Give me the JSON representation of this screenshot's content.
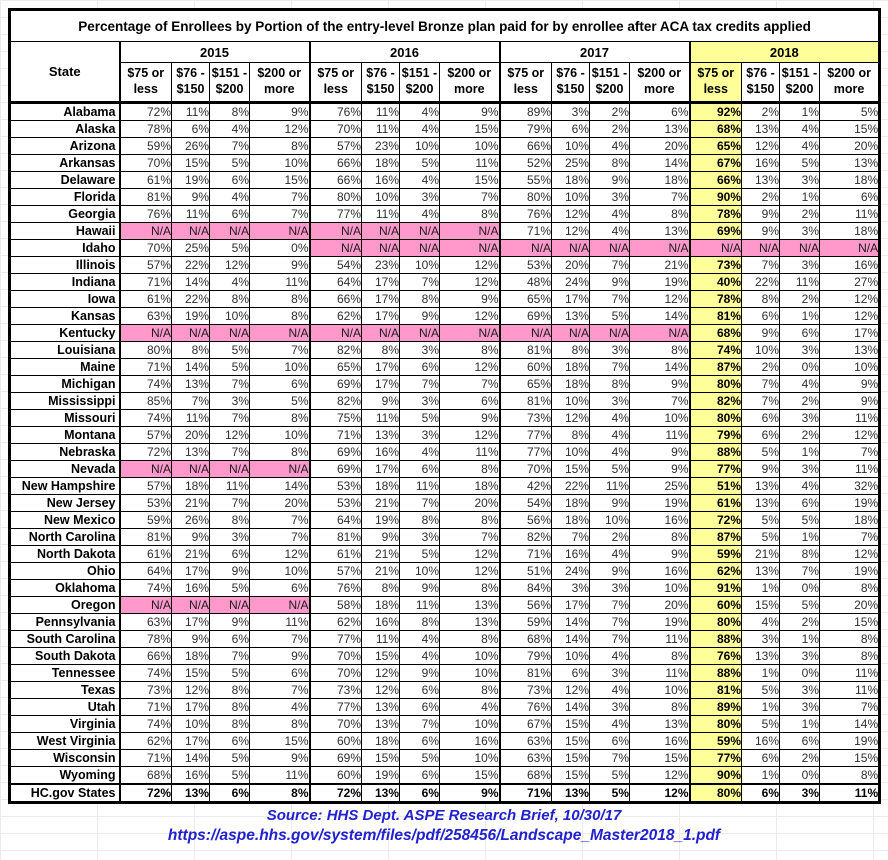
{
  "chart_data": {
    "type": "table",
    "title": "Percentage of Enrollees by Portion of the entry-level Bronze plan paid for by enrollee after ACA tax credits applied",
    "state_header": "State",
    "years": [
      "2015",
      "2016",
      "2017",
      "2018"
    ],
    "highlight_year": "2018",
    "sub_columns": [
      [
        "$75 or",
        "less"
      ],
      [
        "$76 -",
        "$150"
      ],
      [
        "$151 -",
        "$200"
      ],
      [
        "$200 or",
        "more"
      ]
    ],
    "rows": [
      {
        "state": "Alabama",
        "v": [
          "72%",
          "11%",
          "8%",
          "9%",
          "76%",
          "11%",
          "4%",
          "9%",
          "89%",
          "3%",
          "2%",
          "6%",
          "92%",
          "2%",
          "1%",
          "5%"
        ]
      },
      {
        "state": "Alaska",
        "v": [
          "78%",
          "6%",
          "4%",
          "12%",
          "70%",
          "11%",
          "4%",
          "15%",
          "79%",
          "6%",
          "2%",
          "13%",
          "68%",
          "13%",
          "4%",
          "15%"
        ]
      },
      {
        "state": "Arizona",
        "v": [
          "59%",
          "26%",
          "7%",
          "8%",
          "57%",
          "23%",
          "10%",
          "10%",
          "66%",
          "10%",
          "4%",
          "20%",
          "65%",
          "12%",
          "4%",
          "20%"
        ]
      },
      {
        "state": "Arkansas",
        "v": [
          "70%",
          "15%",
          "5%",
          "10%",
          "66%",
          "18%",
          "5%",
          "11%",
          "52%",
          "25%",
          "8%",
          "14%",
          "67%",
          "16%",
          "5%",
          "13%"
        ]
      },
      {
        "state": "Delaware",
        "v": [
          "61%",
          "19%",
          "6%",
          "15%",
          "66%",
          "16%",
          "4%",
          "15%",
          "55%",
          "18%",
          "9%",
          "18%",
          "66%",
          "13%",
          "3%",
          "18%"
        ]
      },
      {
        "state": "Florida",
        "v": [
          "81%",
          "9%",
          "4%",
          "7%",
          "80%",
          "10%",
          "3%",
          "7%",
          "80%",
          "10%",
          "3%",
          "7%",
          "90%",
          "2%",
          "1%",
          "6%"
        ]
      },
      {
        "state": "Georgia",
        "v": [
          "76%",
          "11%",
          "6%",
          "7%",
          "77%",
          "11%",
          "4%",
          "8%",
          "76%",
          "12%",
          "4%",
          "8%",
          "78%",
          "9%",
          "2%",
          "11%"
        ]
      },
      {
        "state": "Hawaii",
        "v": [
          "N/A",
          "N/A",
          "N/A",
          "N/A",
          "N/A",
          "N/A",
          "N/A",
          "N/A",
          "71%",
          "12%",
          "4%",
          "13%",
          "69%",
          "9%",
          "3%",
          "18%"
        ]
      },
      {
        "state": "Idaho",
        "v": [
          "70%",
          "25%",
          "5%",
          "0%",
          "N/A",
          "N/A",
          "N/A",
          "N/A",
          "N/A",
          "N/A",
          "N/A",
          "N/A",
          "N/A",
          "N/A",
          "N/A",
          "N/A"
        ]
      },
      {
        "state": "Illinois",
        "v": [
          "57%",
          "22%",
          "12%",
          "9%",
          "54%",
          "23%",
          "10%",
          "12%",
          "53%",
          "20%",
          "7%",
          "21%",
          "73%",
          "7%",
          "3%",
          "16%"
        ]
      },
      {
        "state": "Indiana",
        "v": [
          "71%",
          "14%",
          "4%",
          "11%",
          "64%",
          "17%",
          "7%",
          "12%",
          "48%",
          "24%",
          "9%",
          "19%",
          "40%",
          "22%",
          "11%",
          "27%"
        ]
      },
      {
        "state": "Iowa",
        "v": [
          "61%",
          "22%",
          "8%",
          "8%",
          "66%",
          "17%",
          "8%",
          "9%",
          "65%",
          "17%",
          "7%",
          "12%",
          "78%",
          "8%",
          "2%",
          "12%"
        ]
      },
      {
        "state": "Kansas",
        "v": [
          "63%",
          "19%",
          "10%",
          "8%",
          "62%",
          "17%",
          "9%",
          "12%",
          "69%",
          "13%",
          "5%",
          "14%",
          "81%",
          "6%",
          "1%",
          "12%"
        ]
      },
      {
        "state": "Kentucky",
        "v": [
          "N/A",
          "N/A",
          "N/A",
          "N/A",
          "N/A",
          "N/A",
          "N/A",
          "N/A",
          "N/A",
          "N/A",
          "N/A",
          "N/A",
          "68%",
          "9%",
          "6%",
          "17%"
        ]
      },
      {
        "state": "Louisiana",
        "v": [
          "80%",
          "8%",
          "5%",
          "7%",
          "82%",
          "8%",
          "3%",
          "8%",
          "81%",
          "8%",
          "3%",
          "8%",
          "74%",
          "10%",
          "3%",
          "13%"
        ]
      },
      {
        "state": "Maine",
        "v": [
          "71%",
          "14%",
          "5%",
          "10%",
          "65%",
          "17%",
          "6%",
          "12%",
          "60%",
          "18%",
          "7%",
          "14%",
          "87%",
          "2%",
          "0%",
          "10%"
        ]
      },
      {
        "state": "Michigan",
        "v": [
          "74%",
          "13%",
          "7%",
          "6%",
          "69%",
          "17%",
          "7%",
          "7%",
          "65%",
          "18%",
          "8%",
          "9%",
          "80%",
          "7%",
          "4%",
          "9%"
        ]
      },
      {
        "state": "Mississippi",
        "v": [
          "85%",
          "7%",
          "3%",
          "5%",
          "82%",
          "9%",
          "3%",
          "6%",
          "81%",
          "10%",
          "3%",
          "7%",
          "82%",
          "7%",
          "2%",
          "9%"
        ]
      },
      {
        "state": "Missouri",
        "v": [
          "74%",
          "11%",
          "7%",
          "8%",
          "75%",
          "11%",
          "5%",
          "9%",
          "73%",
          "12%",
          "4%",
          "10%",
          "80%",
          "6%",
          "3%",
          "11%"
        ]
      },
      {
        "state": "Montana",
        "v": [
          "57%",
          "20%",
          "12%",
          "10%",
          "71%",
          "13%",
          "3%",
          "12%",
          "77%",
          "8%",
          "4%",
          "11%",
          "79%",
          "6%",
          "2%",
          "12%"
        ]
      },
      {
        "state": "Nebraska",
        "v": [
          "72%",
          "13%",
          "7%",
          "8%",
          "69%",
          "16%",
          "4%",
          "11%",
          "77%",
          "10%",
          "4%",
          "9%",
          "88%",
          "5%",
          "1%",
          "7%"
        ]
      },
      {
        "state": "Nevada",
        "v": [
          "N/A",
          "N/A",
          "N/A",
          "N/A",
          "69%",
          "17%",
          "6%",
          "8%",
          "70%",
          "15%",
          "5%",
          "9%",
          "77%",
          "9%",
          "3%",
          "11%"
        ]
      },
      {
        "state": "New Hampshire",
        "v": [
          "57%",
          "18%",
          "11%",
          "14%",
          "53%",
          "18%",
          "11%",
          "18%",
          "42%",
          "22%",
          "11%",
          "25%",
          "51%",
          "13%",
          "4%",
          "32%"
        ]
      },
      {
        "state": "New Jersey",
        "v": [
          "53%",
          "21%",
          "7%",
          "20%",
          "53%",
          "21%",
          "7%",
          "20%",
          "54%",
          "18%",
          "9%",
          "19%",
          "61%",
          "13%",
          "6%",
          "19%"
        ]
      },
      {
        "state": "New Mexico",
        "v": [
          "59%",
          "26%",
          "8%",
          "7%",
          "64%",
          "19%",
          "8%",
          "8%",
          "56%",
          "18%",
          "10%",
          "16%",
          "72%",
          "5%",
          "5%",
          "18%"
        ]
      },
      {
        "state": "North Carolina",
        "v": [
          "81%",
          "9%",
          "3%",
          "7%",
          "81%",
          "9%",
          "3%",
          "7%",
          "82%",
          "7%",
          "2%",
          "8%",
          "87%",
          "5%",
          "1%",
          "7%"
        ]
      },
      {
        "state": "North Dakota",
        "v": [
          "61%",
          "21%",
          "6%",
          "12%",
          "61%",
          "21%",
          "5%",
          "12%",
          "71%",
          "16%",
          "4%",
          "9%",
          "59%",
          "21%",
          "8%",
          "12%"
        ]
      },
      {
        "state": "Ohio",
        "v": [
          "64%",
          "17%",
          "9%",
          "10%",
          "57%",
          "21%",
          "10%",
          "12%",
          "51%",
          "24%",
          "9%",
          "16%",
          "62%",
          "13%",
          "7%",
          "19%"
        ]
      },
      {
        "state": "Oklahoma",
        "v": [
          "74%",
          "16%",
          "5%",
          "6%",
          "76%",
          "8%",
          "9%",
          "8%",
          "84%",
          "3%",
          "3%",
          "10%",
          "91%",
          "1%",
          "0%",
          "8%"
        ]
      },
      {
        "state": "Oregon",
        "v": [
          "N/A",
          "N/A",
          "N/A",
          "N/A",
          "58%",
          "18%",
          "11%",
          "13%",
          "56%",
          "17%",
          "7%",
          "20%",
          "60%",
          "15%",
          "5%",
          "20%"
        ]
      },
      {
        "state": "Pennsylvania",
        "v": [
          "63%",
          "17%",
          "9%",
          "11%",
          "62%",
          "16%",
          "8%",
          "13%",
          "59%",
          "14%",
          "7%",
          "19%",
          "80%",
          "4%",
          "2%",
          "15%"
        ]
      },
      {
        "state": "South Carolina",
        "v": [
          "78%",
          "9%",
          "6%",
          "7%",
          "77%",
          "11%",
          "4%",
          "8%",
          "68%",
          "14%",
          "7%",
          "11%",
          "88%",
          "3%",
          "1%",
          "8%"
        ]
      },
      {
        "state": "South Dakota",
        "v": [
          "66%",
          "18%",
          "7%",
          "9%",
          "70%",
          "15%",
          "4%",
          "10%",
          "79%",
          "10%",
          "4%",
          "8%",
          "76%",
          "13%",
          "3%",
          "8%"
        ]
      },
      {
        "state": "Tennessee",
        "v": [
          "74%",
          "15%",
          "5%",
          "6%",
          "70%",
          "12%",
          "9%",
          "10%",
          "81%",
          "6%",
          "3%",
          "11%",
          "88%",
          "1%",
          "0%",
          "11%"
        ]
      },
      {
        "state": "Texas",
        "v": [
          "73%",
          "12%",
          "8%",
          "7%",
          "73%",
          "12%",
          "6%",
          "8%",
          "73%",
          "12%",
          "4%",
          "10%",
          "81%",
          "5%",
          "3%",
          "11%"
        ]
      },
      {
        "state": "Utah",
        "v": [
          "71%",
          "17%",
          "8%",
          "4%",
          "77%",
          "13%",
          "6%",
          "4%",
          "76%",
          "14%",
          "3%",
          "8%",
          "89%",
          "1%",
          "3%",
          "7%"
        ]
      },
      {
        "state": "Virginia",
        "v": [
          "74%",
          "10%",
          "8%",
          "8%",
          "70%",
          "13%",
          "7%",
          "10%",
          "67%",
          "15%",
          "4%",
          "13%",
          "80%",
          "5%",
          "1%",
          "14%"
        ]
      },
      {
        "state": "West Virginia",
        "v": [
          "62%",
          "17%",
          "6%",
          "15%",
          "60%",
          "18%",
          "6%",
          "16%",
          "63%",
          "15%",
          "6%",
          "16%",
          "59%",
          "16%",
          "6%",
          "19%"
        ]
      },
      {
        "state": "Wisconsin",
        "v": [
          "71%",
          "14%",
          "5%",
          "9%",
          "69%",
          "15%",
          "5%",
          "10%",
          "63%",
          "15%",
          "7%",
          "15%",
          "77%",
          "6%",
          "2%",
          "15%"
        ]
      },
      {
        "state": "Wyoming",
        "v": [
          "68%",
          "16%",
          "5%",
          "11%",
          "60%",
          "19%",
          "6%",
          "15%",
          "68%",
          "15%",
          "5%",
          "12%",
          "90%",
          "1%",
          "0%",
          "8%"
        ]
      },
      {
        "state": "HC.gov States",
        "total": true,
        "v": [
          "72%",
          "13%",
          "6%",
          "8%",
          "72%",
          "13%",
          "6%",
          "9%",
          "71%",
          "13%",
          "5%",
          "12%",
          "80%",
          "6%",
          "3%",
          "11%"
        ]
      }
    ]
  },
  "colors": {
    "na_pink": "#FF99CC",
    "highlight_yellow": "#FFFF99",
    "source_blue": "#2121CE"
  },
  "source": {
    "line1": "Source: HHS Dept. ASPE Research Brief, 10/30/17",
    "line2": "https://aspe.hhs.gov/system/files/pdf/258456/Landscape_Master2018_1.pdf"
  }
}
